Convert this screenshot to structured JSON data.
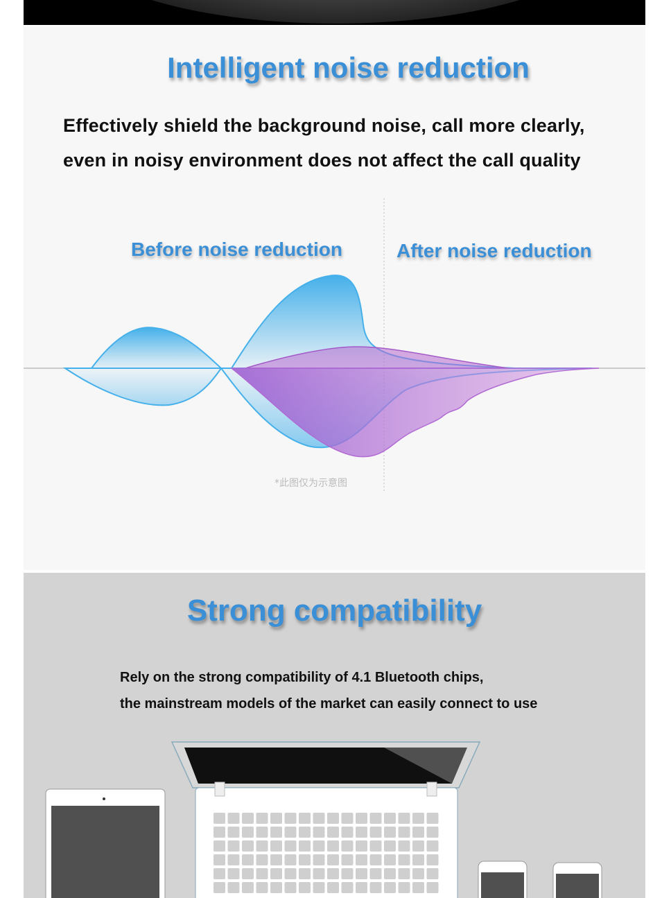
{
  "noise_section": {
    "title": "Intelligent noise reduction",
    "description_lines": [
      "Effectively shield the background noise, call more clearly,",
      "even in noisy environment does not affect the call quality"
    ],
    "before_label": "Before noise reduction",
    "after_label": "After noise reduction",
    "footnote": "*此图仅为示意图",
    "colors": {
      "title": "#3a8fd6",
      "wave_blue": "#4fb3e8",
      "wave_purple": "#b05ac8"
    }
  },
  "compat_section": {
    "title": "Strong compatibility",
    "description_lines": [
      "Rely on the strong compatibility of 4.1 Bluetooth chips,",
      "the mainstream models of the market can easily connect to use"
    ],
    "devices": [
      "tablet",
      "laptop",
      "phone",
      "phone"
    ]
  }
}
